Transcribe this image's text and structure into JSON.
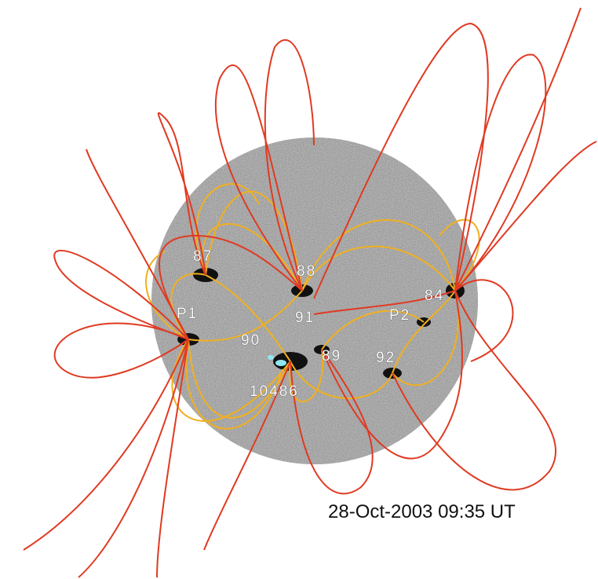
{
  "labels": [
    "87",
    "88",
    "84",
    "P1",
    "P2",
    "91",
    "90",
    "89",
    "92",
    "10486"
  ],
  "timestamp": "28-Oct-2003 09:35 UT"
}
